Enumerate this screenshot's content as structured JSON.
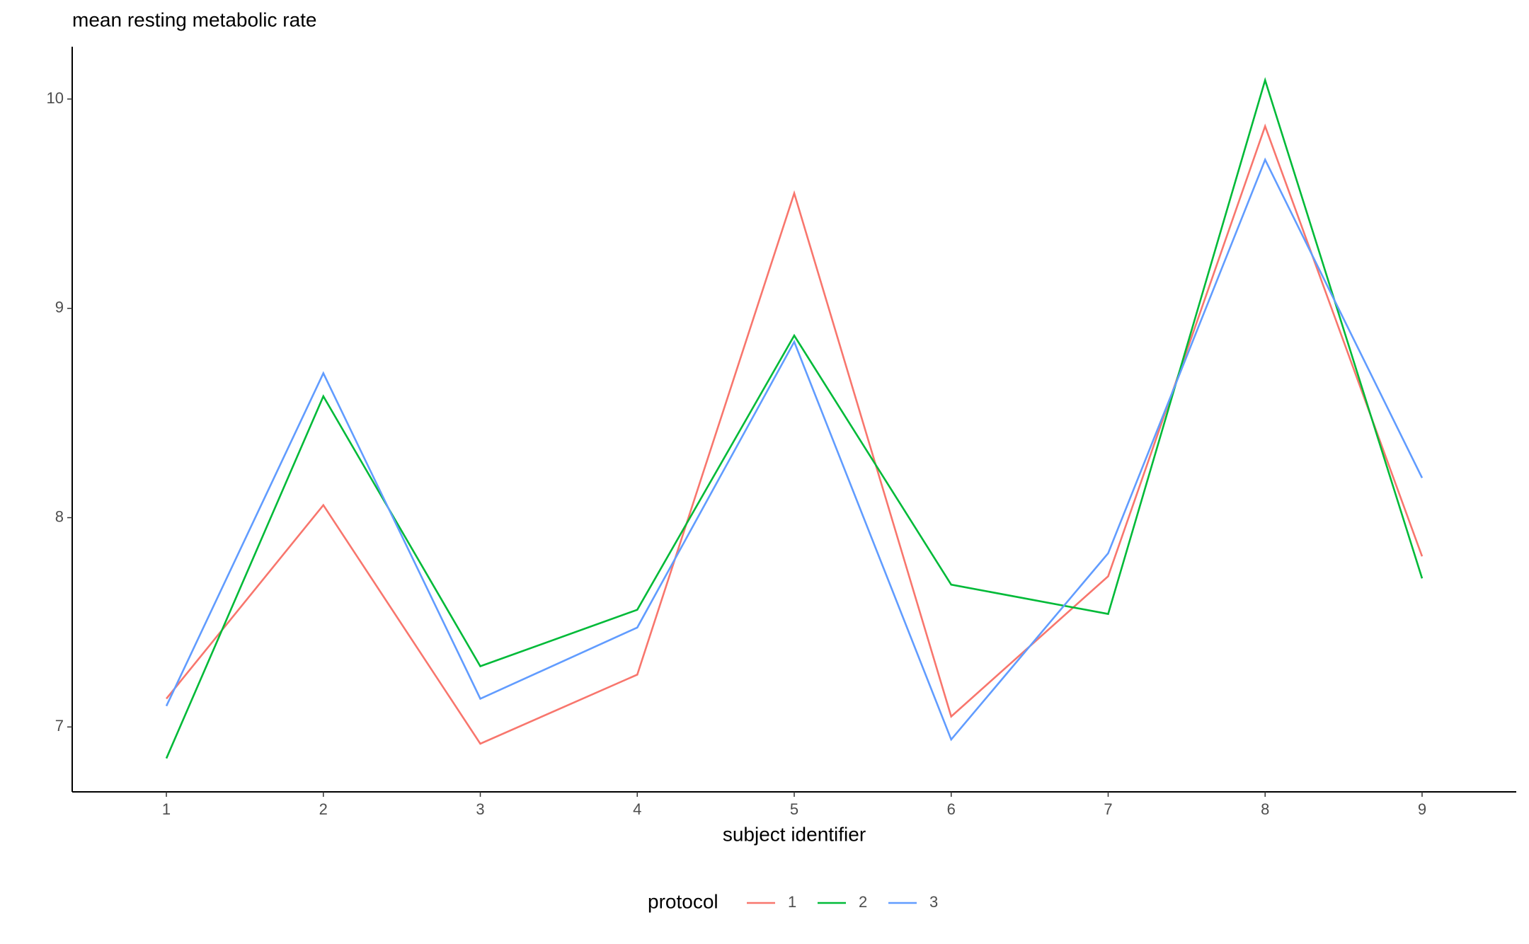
{
  "chart_data": {
    "type": "line",
    "title": "mean resting metabolic rate",
    "x_label": "subject identifier",
    "legend_title": "protocol",
    "legend_position": "bottom",
    "x": [
      1,
      2,
      3,
      4,
      5,
      6,
      7,
      8,
      9
    ],
    "xlim": [
      0.4,
      9.6
    ],
    "xticks": [
      1,
      2,
      3,
      4,
      5,
      6,
      7,
      8,
      9
    ],
    "ylim": [
      6.69,
      10.25
    ],
    "yticks": [
      7,
      8,
      9,
      10
    ],
    "grid": false,
    "series": [
      {
        "name": "1",
        "color": "#f8766d",
        "values": [
          7.135,
          8.06,
          6.92,
          7.25,
          9.55,
          7.05,
          7.72,
          9.87,
          7.815
        ]
      },
      {
        "name": "2",
        "color": "#00ba38",
        "values": [
          6.85,
          8.58,
          7.29,
          7.56,
          8.87,
          7.68,
          7.54,
          10.09,
          7.71
        ]
      },
      {
        "name": "3",
        "color": "#619cff",
        "values": [
          7.1,
          8.69,
          7.135,
          7.475,
          8.84,
          6.94,
          7.83,
          9.71,
          8.19
        ]
      }
    ]
  }
}
